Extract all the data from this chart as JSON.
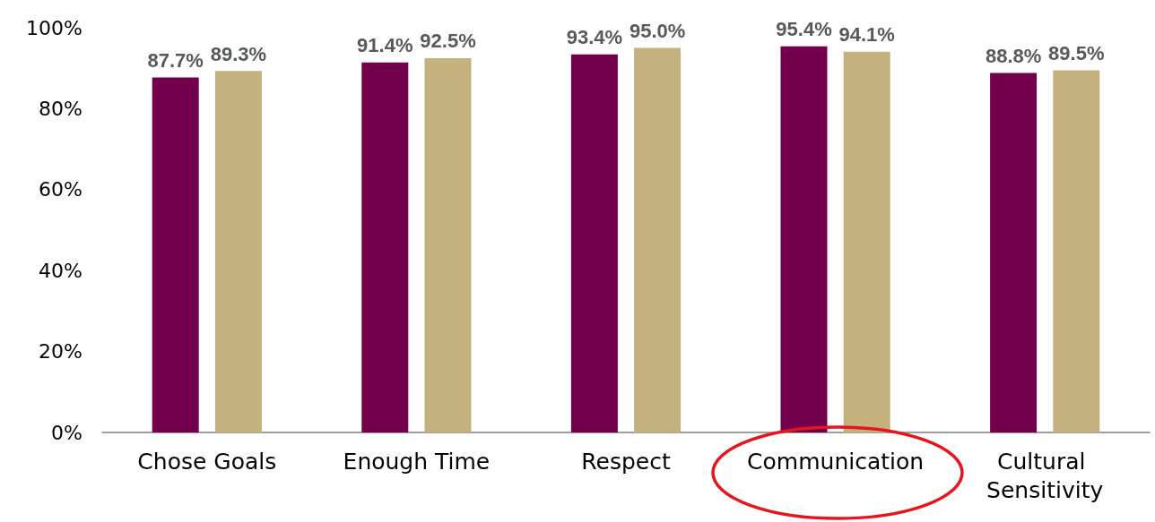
{
  "chart_data": {
    "type": "bar",
    "categories": [
      "Chose Goals",
      "Enough Time",
      "Respect",
      "Communication",
      "Cultural Sensitivity"
    ],
    "series": [
      {
        "color": "#72004c",
        "values": [
          87.7,
          91.4,
          93.4,
          95.4,
          88.8
        ],
        "value_labels": [
          "87.7%",
          "91.4%",
          "93.4%",
          "95.4%",
          "88.8%"
        ]
      },
      {
        "color": "#c4b17d",
        "values": [
          89.3,
          92.5,
          95.0,
          94.1,
          89.5
        ],
        "value_labels": [
          "89.3%",
          "92.5%",
          "95.0%",
          "94.1%",
          "89.5%"
        ]
      }
    ],
    "ylim": [
      0,
      100
    ],
    "yticks": [
      {
        "value": 0,
        "label": "0%"
      },
      {
        "value": 20,
        "label": "20%"
      },
      {
        "value": 40,
        "label": "40%"
      },
      {
        "value": 60,
        "label": "60%"
      },
      {
        "value": 80,
        "label": "80%"
      },
      {
        "value": 100,
        "label": "100%"
      }
    ],
    "grid": false
  }
}
